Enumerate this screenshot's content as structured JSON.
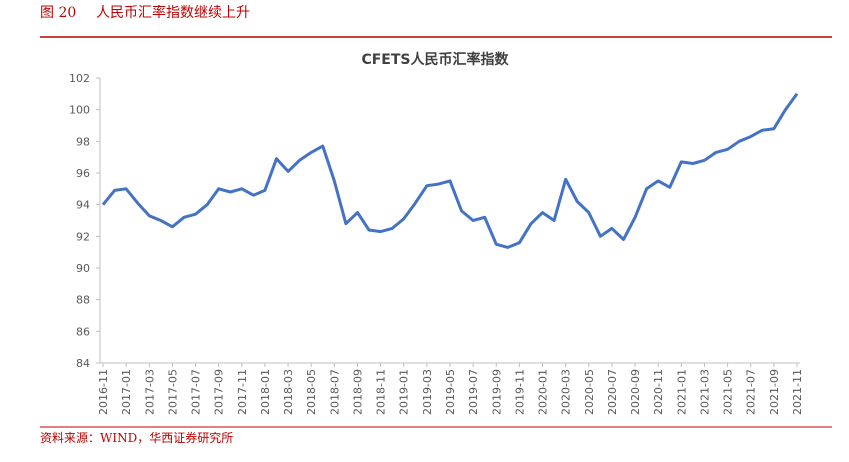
{
  "figure": {
    "label": "图 20",
    "caption": "人民币汇率指数继续上升",
    "source": "资料来源：WIND，华西证券研究所"
  },
  "chart_data": {
    "type": "line",
    "title": "CFETS人民币汇率指数",
    "categories": [
      "2016-11",
      null,
      "2017-01",
      null,
      "2017-03",
      null,
      "2017-05",
      null,
      "2017-07",
      null,
      "2017-09",
      null,
      "2017-11",
      null,
      "2018-01",
      null,
      "2018-03",
      null,
      "2018-05",
      null,
      "2018-07",
      null,
      "2018-09",
      null,
      "2018-11",
      null,
      "2019-01",
      null,
      "2019-03",
      null,
      "2019-05",
      null,
      "2019-07",
      null,
      "2019-09",
      null,
      "2019-11",
      null,
      "2020-01",
      null,
      "2020-03",
      null,
      "2020-05",
      null,
      "2020-07",
      null,
      "2020-09",
      null,
      "2020-11",
      null,
      "2021-01",
      null,
      "2021-03",
      null,
      "2021-05",
      null,
      "2021-07",
      null,
      "2021-09",
      null,
      "2021-11"
    ],
    "series": [
      {
        "name": "CFETS人民币汇率指数",
        "color": "#4472c4",
        "values": [
          94.0,
          94.9,
          95.0,
          94.1,
          93.3,
          93.0,
          92.6,
          93.2,
          93.4,
          94.0,
          95.0,
          94.8,
          95.0,
          94.6,
          94.9,
          96.9,
          96.1,
          96.8,
          97.3,
          97.7,
          95.5,
          92.8,
          93.5,
          92.4,
          92.3,
          92.5,
          93.1,
          94.1,
          95.2,
          95.3,
          95.5,
          93.6,
          93.0,
          93.2,
          91.5,
          91.3,
          91.6,
          92.8,
          93.5,
          93.0,
          95.6,
          94.2,
          93.5,
          92.0,
          92.5,
          91.8,
          93.2,
          95.0,
          95.5,
          95.1,
          96.7,
          96.6,
          96.8,
          97.3,
          97.5,
          98.0,
          98.3,
          98.7,
          98.8,
          100.0,
          101.0
        ]
      }
    ],
    "ylim": [
      84,
      102
    ],
    "yticks": [
      84,
      86,
      88,
      90,
      92,
      94,
      96,
      98,
      100,
      102
    ],
    "grid": false
  }
}
